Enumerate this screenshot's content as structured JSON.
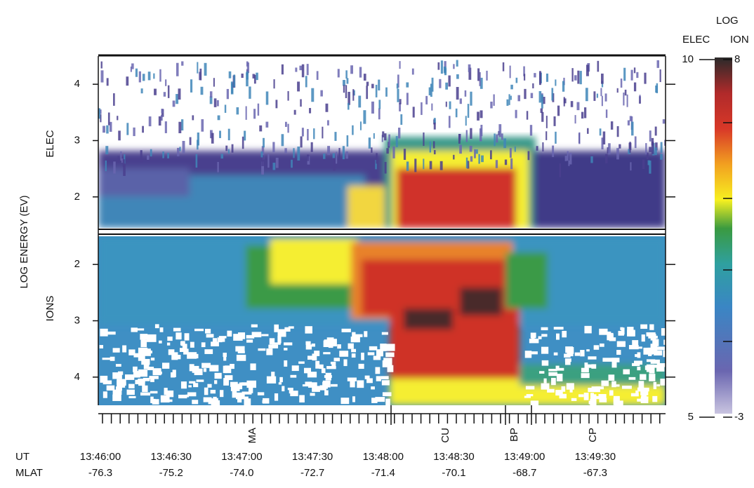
{
  "chart_data": {
    "type": "spectrogram",
    "y_label": "LOG ENERGY (EV)",
    "panels": [
      {
        "name": "ELEC",
        "ylim": [
          1.45,
          4.5
        ],
        "yticks": [
          2,
          3,
          4
        ]
      },
      {
        "name": "IONS",
        "ylim": [
          4.5,
          1.5
        ],
        "yticks": [
          2,
          3,
          4
        ]
      }
    ],
    "colorbar": {
      "title": "LOG",
      "scales": [
        {
          "name": "ELEC",
          "lim": [
            5,
            10
          ]
        },
        {
          "name": "ION",
          "lim": [
            -3,
            8
          ]
        }
      ]
    },
    "x_rows": [
      {
        "label": "UT",
        "values": [
          "13:46:00",
          "13:46:30",
          "13:47:00",
          "13:47:30",
          "13:48:00",
          "13:48:30",
          "13:49:00",
          "13:49:30"
        ]
      },
      {
        "label": "MLAT",
        "values": [
          -76.3,
          -75.2,
          {
            "value": -74,
            "label": "-74.0"
          },
          -72.7,
          -71.4,
          -70.1,
          -68.7,
          -67.3
        ]
      }
    ],
    "regions": [
      "MA",
      "CU",
      "BP",
      "CP"
    ]
  }
}
